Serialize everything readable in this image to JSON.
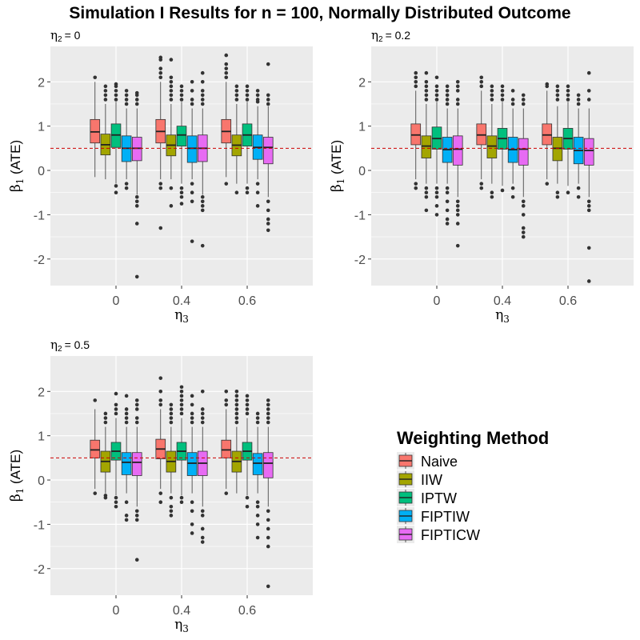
{
  "title": "Simulation I Results for n = 100, Normally Distributed Outcome",
  "legend": {
    "title": "Weighting Method",
    "placement": "right-bottom",
    "items": [
      {
        "name": "Naive",
        "color": "#F8766D"
      },
      {
        "name": "IIW",
        "color": "#A3A500"
      },
      {
        "name": "IPTW",
        "color": "#00BF7D"
      },
      {
        "name": "FIPTIW",
        "color": "#00B0F6"
      },
      {
        "name": "FIPTICW",
        "color": "#E76BF3"
      }
    ]
  },
  "chart_data": [
    {
      "type": "boxplot",
      "subtitle_sym": "η",
      "subtitle_sub": "2",
      "subtitle_val": "= 0",
      "xlabel_sym": "η",
      "xlabel_sub": "3",
      "ylabel_sym": "β",
      "ylabel_sub": "1",
      "ylabel_rest": " (ATE)",
      "categories": [
        "0",
        "0.4",
        "0.6"
      ],
      "ylim": [
        -2.6,
        2.8
      ],
      "yticks": [
        -2,
        -1,
        0,
        1,
        2
      ],
      "reference_line": 0.5,
      "groups": [
        [
          {
            "method": "Naive",
            "lower": -0.15,
            "q1": 0.62,
            "median": 0.87,
            "q3": 1.15,
            "upper": 2.0,
            "outliers": [
              2.1
            ]
          },
          {
            "method": "IIW",
            "lower": -0.2,
            "q1": 0.35,
            "median": 0.58,
            "q3": 0.82,
            "upper": 1.5,
            "outliers": [
              1.6,
              1.7,
              1.8,
              1.9
            ]
          },
          {
            "method": "IPTW",
            "lower": -0.3,
            "q1": 0.52,
            "median": 0.8,
            "q3": 1.05,
            "upper": 1.55,
            "outliers": [
              1.6,
              1.7,
              1.8,
              1.9,
              1.95,
              -0.35,
              -0.5
            ]
          },
          {
            "method": "FIPTIW",
            "lower": -0.2,
            "q1": 0.2,
            "median": 0.5,
            "q3": 0.78,
            "upper": 1.4,
            "outliers": [
              1.5,
              1.6,
              1.7,
              1.8,
              -0.3,
              -0.4
            ]
          },
          {
            "method": "FIPTICW",
            "lower": -0.55,
            "q1": 0.22,
            "median": 0.5,
            "q3": 0.75,
            "upper": 1.4,
            "outliers": [
              1.5,
              1.6,
              1.7,
              1.75,
              -0.6,
              -0.7,
              -0.8,
              -1.2,
              -2.4
            ]
          }
        ],
        [
          {
            "method": "Naive",
            "lower": -0.2,
            "q1": 0.62,
            "median": 0.88,
            "q3": 1.15,
            "upper": 2.0,
            "outliers": [
              2.1,
              2.2,
              2.3,
              2.5,
              2.55,
              -0.3,
              -0.4,
              -1.3
            ]
          },
          {
            "method": "IIW",
            "lower": -0.2,
            "q1": 0.33,
            "median": 0.57,
            "q3": 0.8,
            "upper": 1.5,
            "outliers": [
              1.6,
              1.7,
              1.8,
              1.9,
              2.0,
              2.1,
              2.5,
              -0.4,
              -0.8
            ]
          },
          {
            "method": "IPTW",
            "lower": -0.3,
            "q1": 0.55,
            "median": 0.8,
            "q3": 1.0,
            "upper": 1.55,
            "outliers": [
              1.6,
              1.7,
              1.8,
              1.9,
              -0.4,
              -0.5,
              -0.6,
              -0.75
            ]
          },
          {
            "method": "FIPTIW",
            "lower": -0.2,
            "q1": 0.18,
            "median": 0.5,
            "q3": 0.78,
            "upper": 1.4,
            "outliers": [
              1.5,
              1.6,
              1.8,
              2.0,
              -0.3,
              -0.5,
              -0.7,
              -1.6
            ]
          },
          {
            "method": "FIPTICW",
            "lower": -0.55,
            "q1": 0.2,
            "median": 0.5,
            "q3": 0.8,
            "upper": 1.4,
            "outliers": [
              1.5,
              1.6,
              1.7,
              1.8,
              2.0,
              2.2,
              -0.6,
              -0.7,
              -0.8,
              -0.9,
              -1.7
            ]
          }
        ],
        [
          {
            "method": "Naive",
            "lower": -0.15,
            "q1": 0.62,
            "median": 0.88,
            "q3": 1.15,
            "upper": 2.0,
            "outliers": [
              2.1,
              2.2,
              2.3,
              2.4,
              2.6,
              -0.3
            ]
          },
          {
            "method": "IIW",
            "lower": -0.3,
            "q1": 0.33,
            "median": 0.57,
            "q3": 0.8,
            "upper": 1.5,
            "outliers": [
              1.6,
              1.7,
              1.8,
              1.9,
              -0.5
            ]
          },
          {
            "method": "IPTW",
            "lower": -0.3,
            "q1": 0.55,
            "median": 0.8,
            "q3": 1.05,
            "upper": 1.55,
            "outliers": [
              1.6,
              1.7,
              1.8,
              1.9,
              -0.4,
              -0.5
            ]
          },
          {
            "method": "FIPTIW",
            "lower": -0.2,
            "q1": 0.25,
            "median": 0.52,
            "q3": 0.8,
            "upper": 1.45,
            "outliers": [
              1.55,
              1.6,
              1.7,
              1.8,
              -0.3,
              -0.5,
              -0.8
            ]
          },
          {
            "method": "FIPTICW",
            "lower": -0.6,
            "q1": 0.15,
            "median": 0.52,
            "q3": 0.75,
            "upper": 1.45,
            "outliers": [
              1.5,
              1.6,
              1.7,
              2.4,
              -0.7,
              -0.9,
              -1.1,
              -1.2,
              -1.35
            ]
          }
        ]
      ]
    },
    {
      "type": "boxplot",
      "subtitle_sym": "η",
      "subtitle_sub": "2",
      "subtitle_val": "= 0.2",
      "xlabel_sym": "η",
      "xlabel_sub": "3",
      "ylabel_sym": "β",
      "ylabel_sub": "1",
      "ylabel_rest": " (ATE)",
      "categories": [
        "0",
        "0.4",
        "0.6"
      ],
      "ylim": [
        -2.6,
        2.8
      ],
      "yticks": [
        -2,
        -1,
        0,
        1,
        2
      ],
      "reference_line": 0.5,
      "groups": [
        [
          {
            "method": "Naive",
            "lower": -0.2,
            "q1": 0.58,
            "median": 0.8,
            "q3": 1.05,
            "upper": 1.8,
            "outliers": [
              1.9,
              2.0,
              2.1,
              2.2,
              -0.3,
              -0.4
            ]
          },
          {
            "method": "IIW",
            "lower": -0.3,
            "q1": 0.28,
            "median": 0.55,
            "q3": 0.78,
            "upper": 1.5,
            "outliers": [
              1.6,
              1.7,
              1.8,
              1.9,
              2.0,
              2.2,
              -0.4,
              -0.5,
              -0.6,
              -0.9
            ]
          },
          {
            "method": "IPTW",
            "lower": -0.3,
            "q1": 0.48,
            "median": 0.72,
            "q3": 0.98,
            "upper": 1.55,
            "outliers": [
              1.6,
              1.7,
              1.8,
              1.9,
              2.1,
              -0.4,
              -0.5,
              -0.6,
              -0.8,
              -1.0
            ]
          },
          {
            "method": "FIPTIW",
            "lower": -0.3,
            "q1": 0.18,
            "median": 0.47,
            "q3": 0.75,
            "upper": 1.4,
            "outliers": [
              1.5,
              1.6,
              1.7,
              1.8,
              1.9,
              -0.4,
              -0.5,
              -0.7,
              -0.9,
              -1.1,
              -1.2
            ]
          },
          {
            "method": "FIPTICW",
            "lower": -0.6,
            "q1": 0.12,
            "median": 0.48,
            "q3": 0.78,
            "upper": 1.4,
            "outliers": [
              1.5,
              1.6,
              1.8,
              1.9,
              2.0,
              -0.7,
              -0.8,
              -0.9,
              -1.0,
              -1.2,
              -1.7
            ]
          }
        ],
        [
          {
            "method": "Naive",
            "lower": -0.2,
            "q1": 0.58,
            "median": 0.8,
            "q3": 1.05,
            "upper": 1.8,
            "outliers": [
              1.9,
              2.0,
              2.1,
              -0.3,
              -0.4
            ]
          },
          {
            "method": "IIW",
            "lower": -0.3,
            "q1": 0.28,
            "median": 0.55,
            "q3": 0.78,
            "upper": 1.5,
            "outliers": [
              1.6,
              1.7,
              1.8,
              1.9,
              -0.5,
              -0.6
            ]
          },
          {
            "method": "IPTW",
            "lower": -0.35,
            "q1": 0.48,
            "median": 0.72,
            "q3": 0.95,
            "upper": 1.55,
            "outliers": [
              1.6,
              1.7,
              1.8,
              1.9,
              -0.45
            ]
          },
          {
            "method": "FIPTIW",
            "lower": -0.3,
            "q1": 0.18,
            "median": 0.47,
            "q3": 0.75,
            "upper": 1.4,
            "outliers": [
              1.5,
              1.6,
              1.8,
              -0.4,
              -0.6
            ]
          },
          {
            "method": "FIPTICW",
            "lower": -0.6,
            "q1": 0.12,
            "median": 0.48,
            "q3": 0.72,
            "upper": 1.4,
            "outliers": [
              1.5,
              1.6,
              1.7,
              -0.7,
              -0.8,
              -1.0,
              -1.3,
              -1.4,
              -1.5
            ]
          }
        ],
        [
          {
            "method": "Naive",
            "lower": -0.2,
            "q1": 0.58,
            "median": 0.8,
            "q3": 1.05,
            "upper": 1.8,
            "outliers": [
              1.9,
              1.95,
              -0.3
            ]
          },
          {
            "method": "IIW",
            "lower": -0.3,
            "q1": 0.22,
            "median": 0.5,
            "q3": 0.75,
            "upper": 1.45,
            "outliers": [
              1.6,
              1.7,
              1.8,
              1.9,
              -0.5,
              -0.6
            ]
          },
          {
            "method": "IPTW",
            "lower": -0.35,
            "q1": 0.48,
            "median": 0.72,
            "q3": 0.95,
            "upper": 1.55,
            "outliers": [
              1.6,
              1.7,
              1.8,
              1.9,
              -0.5
            ]
          },
          {
            "method": "FIPTIW",
            "lower": -0.3,
            "q1": 0.15,
            "median": 0.45,
            "q3": 0.75,
            "upper": 1.4,
            "outliers": [
              1.5,
              1.6,
              1.7,
              -0.4,
              -0.6
            ]
          },
          {
            "method": "FIPTICW",
            "lower": -0.6,
            "q1": 0.12,
            "median": 0.45,
            "q3": 0.72,
            "upper": 1.4,
            "outliers": [
              1.6,
              1.8,
              2.2,
              -0.7,
              -0.8,
              -0.9,
              -1.75,
              -2.5
            ]
          }
        ]
      ]
    },
    {
      "type": "boxplot",
      "subtitle_sym": "η",
      "subtitle_sub": "2",
      "subtitle_val": "= 0.5",
      "xlabel_sym": "η",
      "xlabel_sub": "3",
      "ylabel_sym": "β",
      "ylabel_sub": "1",
      "ylabel_rest": " (ATE)",
      "categories": [
        "0",
        "0.4",
        "0.6"
      ],
      "ylim": [
        -2.6,
        2.8
      ],
      "yticks": [
        -2,
        -1,
        0,
        1,
        2
      ],
      "reference_line": 0.5,
      "groups": [
        [
          {
            "method": "Naive",
            "lower": -0.2,
            "q1": 0.5,
            "median": 0.68,
            "q3": 0.9,
            "upper": 1.6,
            "outliers": [
              1.8,
              -0.3
            ]
          },
          {
            "method": "IIW",
            "lower": -0.3,
            "q1": 0.18,
            "median": 0.42,
            "q3": 0.65,
            "upper": 1.2,
            "outliers": [
              1.3,
              1.4,
              1.5,
              -0.35,
              -0.4
            ]
          },
          {
            "method": "IPTW",
            "lower": -0.35,
            "q1": 0.45,
            "median": 0.65,
            "q3": 0.85,
            "upper": 1.4,
            "outliers": [
              1.5,
              1.6,
              1.7,
              1.95,
              -0.4,
              -0.5,
              -0.6
            ]
          },
          {
            "method": "FIPTIW",
            "lower": -0.3,
            "q1": 0.12,
            "median": 0.4,
            "q3": 0.62,
            "upper": 1.2,
            "outliers": [
              1.3,
              1.4,
              1.5,
              1.6,
              1.9,
              -0.5,
              -0.8,
              -0.9
            ]
          },
          {
            "method": "FIPTICW",
            "lower": -0.6,
            "q1": 0.1,
            "median": 0.4,
            "q3": 0.62,
            "upper": 1.2,
            "outliers": [
              1.3,
              1.4,
              1.6,
              1.7,
              1.8,
              -0.7,
              -0.8,
              -0.9,
              -1.8
            ]
          }
        ],
        [
          {
            "method": "Naive",
            "lower": -0.2,
            "q1": 0.48,
            "median": 0.7,
            "q3": 0.92,
            "upper": 1.6,
            "outliers": [
              1.7,
              1.8,
              2.0,
              2.3,
              -0.3,
              -0.5
            ]
          },
          {
            "method": "IIW",
            "lower": -0.3,
            "q1": 0.18,
            "median": 0.42,
            "q3": 0.65,
            "upper": 1.2,
            "outliers": [
              1.3,
              1.4,
              1.5,
              1.6,
              1.7,
              -0.4,
              -0.6,
              -0.7,
              -0.8
            ]
          },
          {
            "method": "IPTW",
            "lower": -0.35,
            "q1": 0.45,
            "median": 0.65,
            "q3": 0.85,
            "upper": 1.4,
            "outliers": [
              1.5,
              1.6,
              1.7,
              1.8,
              1.9,
              2.0,
              2.1,
              -0.4,
              -0.5
            ]
          },
          {
            "method": "FIPTIW",
            "lower": -0.3,
            "q1": 0.1,
            "median": 0.38,
            "q3": 0.62,
            "upper": 1.2,
            "outliers": [
              1.3,
              1.4,
              1.5,
              1.7,
              1.9,
              -0.5,
              -0.7,
              -1.0,
              -1.2
            ]
          },
          {
            "method": "FIPTICW",
            "lower": -0.6,
            "q1": 0.1,
            "median": 0.38,
            "q3": 0.65,
            "upper": 1.2,
            "outliers": [
              1.3,
              1.4,
              1.5,
              1.6,
              2.0,
              -0.7,
              -0.8,
              -1.1,
              -1.3,
              -1.4
            ]
          }
        ],
        [
          {
            "method": "Naive",
            "lower": -0.2,
            "q1": 0.5,
            "median": 0.68,
            "q3": 0.9,
            "upper": 1.6,
            "outliers": [
              1.7,
              1.8,
              2.0,
              -0.3
            ]
          },
          {
            "method": "IIW",
            "lower": -0.3,
            "q1": 0.18,
            "median": 0.42,
            "q3": 0.65,
            "upper": 1.2,
            "outliers": [
              1.3,
              1.4,
              1.5,
              1.6,
              1.7,
              1.8,
              1.9,
              2.0
            ]
          },
          {
            "method": "IPTW",
            "lower": -0.35,
            "q1": 0.45,
            "median": 0.65,
            "q3": 0.85,
            "upper": 1.4,
            "outliers": [
              1.5,
              1.6,
              1.7,
              1.8,
              1.9,
              -0.4,
              -0.6
            ]
          },
          {
            "method": "FIPTIW",
            "lower": -0.3,
            "q1": 0.12,
            "median": 0.38,
            "q3": 0.6,
            "upper": 1.2,
            "outliers": [
              1.3,
              1.4,
              1.5,
              -0.5,
              -0.6,
              -0.8,
              -1.0,
              -1.3
            ]
          },
          {
            "method": "FIPTICW",
            "lower": -0.6,
            "q1": 0.05,
            "median": 0.38,
            "q3": 0.62,
            "upper": 1.2,
            "outliers": [
              1.3,
              1.4,
              1.5,
              1.6,
              1.7,
              1.8,
              -0.7,
              -0.9,
              -1.1,
              -1.3,
              -1.5,
              -2.4
            ]
          }
        ]
      ]
    }
  ]
}
